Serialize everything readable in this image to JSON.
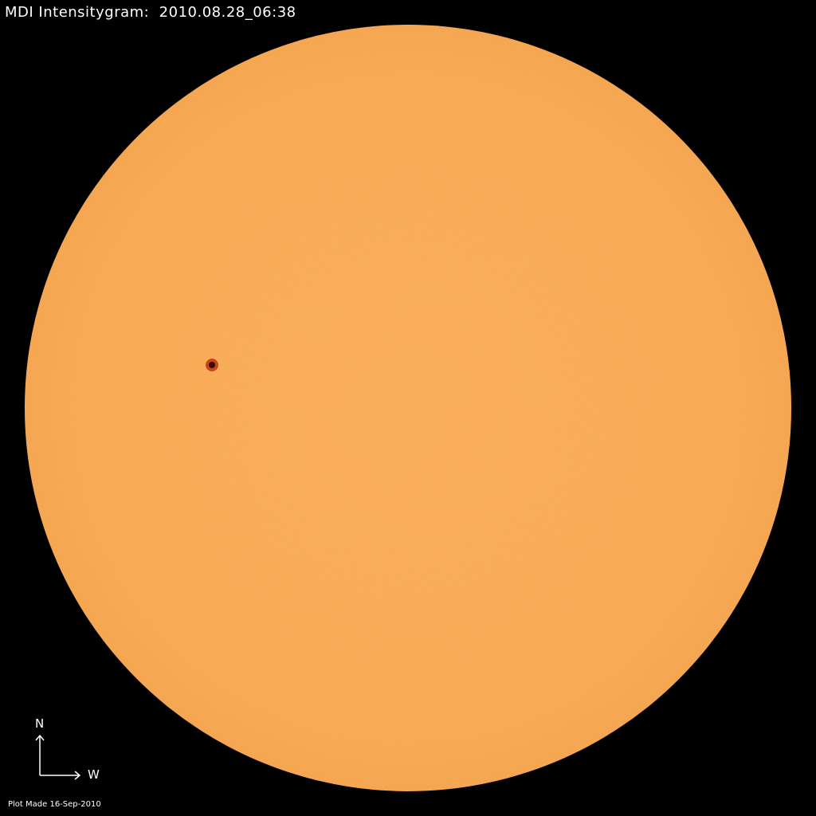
{
  "title": "MDI Intensitygram:  2010.08.28_06:38",
  "compass": {
    "north_label": "N",
    "west_label": "W"
  },
  "footer": "Plot Made 16-Sep-2010",
  "colors": {
    "background": "#000000",
    "disk": "#F8A850",
    "disk_limb": "#F2A04A",
    "sunspot_penumbra": "#C0401A",
    "sunspot_umbra": "#3A0A08",
    "text": "#FFFFFF"
  }
}
